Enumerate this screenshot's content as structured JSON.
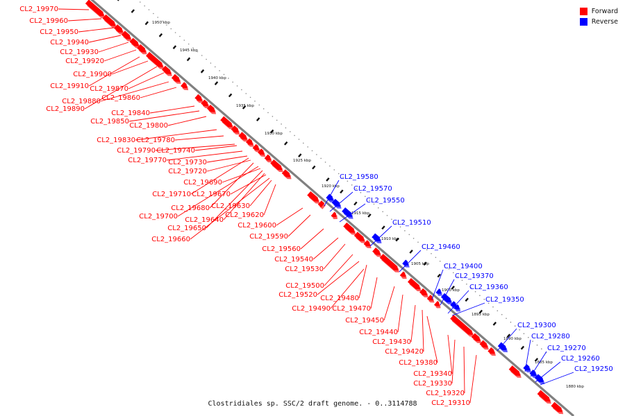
{
  "legend": {
    "forward": {
      "label": "Forward",
      "color": "#ff0000"
    },
    "reverse": {
      "label": "Reverse",
      "color": "#0000ff"
    }
  },
  "caption": "Clostridiales sp. SSC/2 draft genome. - 0..3114788",
  "kbp_ticks": [
    "1950 kbp",
    "1945 kbp",
    "1940 kbp",
    "1935 kbp",
    "1930 kbp",
    "1925 kbp",
    "1920 kbp",
    "1915 kbp",
    "1910 kbp",
    "1905 kbp",
    "1900 kbp",
    "1895 kbp",
    "1890 kbp",
    "1885 kbp",
    "1880 kbp"
  ],
  "forward_labels": [
    "CL2_19970",
    "CL2_19960",
    "CL2_19950",
    "CL2_19940",
    "CL2_19930",
    "CL2_19920",
    "CL2_19900",
    "CL2_19910",
    "CL2_19870",
    "CL2_19880",
    "CL2_19860",
    "CL2_19890",
    "CL2_19840",
    "CL2_19850",
    "CL2_19800",
    "CL2_19830",
    "CL2_19780",
    "CL2_19790",
    "CL2_19740",
    "CL2_19770",
    "CL2_19730",
    "CL2_19720",
    "CL2_19690",
    "CL2_19710",
    "CL2_19670",
    "CL2_19680",
    "CL2_19630",
    "CL2_19700",
    "CL2_19620",
    "CL2_19640",
    "CL2_19650",
    "CL2_19600",
    "CL2_19660",
    "CL2_19590",
    "CL2_19560",
    "CL2_19540",
    "CL2_19530",
    "CL2_19500",
    "CL2_19520",
    "CL2_19480",
    "CL2_19490",
    "CL2_19470",
    "CL2_19450",
    "CL2_19440",
    "CL2_19430",
    "CL2_19420",
    "CL2_19380",
    "CL2_19340",
    "CL2_19330",
    "CL2_19320",
    "CL2_19310"
  ],
  "reverse_labels": [
    "CL2_19580",
    "CL2_19570",
    "CL2_19550",
    "CL2_19510",
    "CL2_19460",
    "CL2_19400",
    "CL2_19370",
    "CL2_19360",
    "CL2_19350",
    "CL2_19300",
    "CL2_19280",
    "CL2_19270",
    "CL2_19260",
    "CL2_19250"
  ]
}
